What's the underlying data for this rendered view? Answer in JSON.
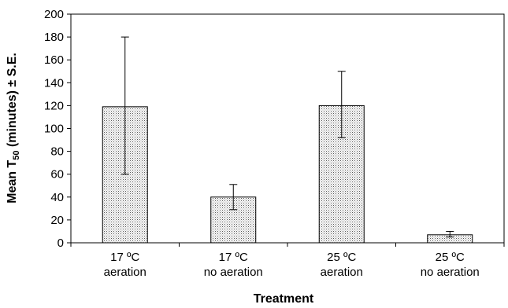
{
  "chart_data": {
    "type": "bar",
    "categories": [
      [
        "17 ºC",
        "aeration"
      ],
      [
        "17 ºC",
        "no aeration"
      ],
      [
        "25 ºC",
        "aeration"
      ],
      [
        "25 ºC",
        "no aeration"
      ]
    ],
    "values": [
      119,
      40,
      120,
      7
    ],
    "error_low": [
      60,
      29,
      92,
      5
    ],
    "error_high": [
      180,
      51,
      150,
      10
    ],
    "ylabel_main": "Mean T",
    "ylabel_sub": "50",
    "ylabel_rest": " (minutes) ± S.E.",
    "xlabel": "Treatment",
    "ylim": [
      0,
      200
    ],
    "yticks": [
      "0",
      "20",
      "40",
      "60",
      "80",
      "100",
      "120",
      "140",
      "160",
      "180",
      "200"
    ],
    "bar_pattern": "stippled",
    "grid": false
  }
}
